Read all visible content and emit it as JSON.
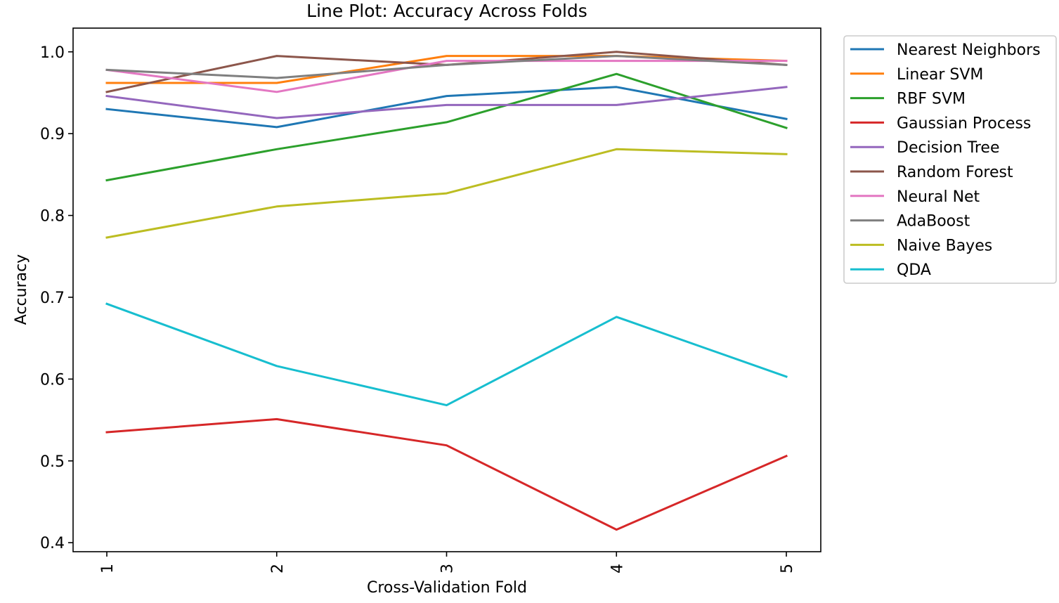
{
  "chart_data": {
    "type": "line",
    "title": "Line Plot: Accuracy Across Folds",
    "xlabel": "Cross-Validation Fold",
    "ylabel": "Accuracy",
    "x": [
      "1",
      "2",
      "3",
      "4",
      "5"
    ],
    "ylim": [
      0.389,
      1.029
    ],
    "yticks": [
      "0.4",
      "0.5",
      "0.6",
      "0.7",
      "0.8",
      "0.9",
      "1.0"
    ],
    "grid": false,
    "legend_position": "outside-right",
    "series": [
      {
        "name": "Nearest Neighbors",
        "color": "#1f77b4",
        "values": [
          0.93,
          0.908,
          0.946,
          0.957,
          0.918
        ]
      },
      {
        "name": "Linear SVM",
        "color": "#ff7f0e",
        "values": [
          0.962,
          0.962,
          0.995,
          0.995,
          0.989
        ]
      },
      {
        "name": "RBF SVM",
        "color": "#2ca02c",
        "values": [
          0.843,
          0.881,
          0.914,
          0.973,
          0.907
        ]
      },
      {
        "name": "Gaussian Process",
        "color": "#d62728",
        "values": [
          0.535,
          0.551,
          0.519,
          0.416,
          0.506
        ]
      },
      {
        "name": "Decision Tree",
        "color": "#9467bd",
        "values": [
          0.946,
          0.919,
          0.935,
          0.935,
          0.957
        ]
      },
      {
        "name": "Random Forest",
        "color": "#8c564b",
        "values": [
          0.951,
          0.995,
          0.984,
          1.0,
          0.984
        ]
      },
      {
        "name": "Neural Net",
        "color": "#e377c2",
        "values": [
          0.978,
          0.951,
          0.989,
          0.989,
          0.989
        ]
      },
      {
        "name": "AdaBoost",
        "color": "#7f7f7f",
        "values": [
          0.978,
          0.968,
          0.984,
          0.995,
          0.984
        ]
      },
      {
        "name": "Naive Bayes",
        "color": "#bcbd22",
        "values": [
          0.773,
          0.811,
          0.827,
          0.881,
          0.875
        ]
      },
      {
        "name": "QDA",
        "color": "#17becf",
        "values": [
          0.692,
          0.616,
          0.568,
          0.676,
          0.603
        ]
      }
    ]
  }
}
